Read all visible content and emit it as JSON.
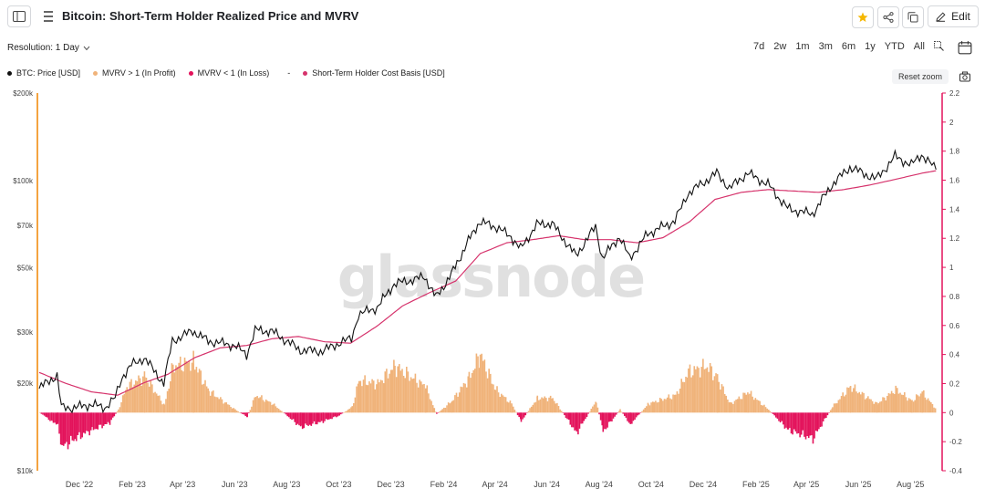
{
  "header": {
    "title": "Bitcoin: Short-Term Holder Realized Price and MVRV",
    "edit_label": "Edit"
  },
  "toolbar": {
    "resolution_label": "Resolution: 1 Day",
    "ranges": [
      "7d",
      "2w",
      "1m",
      "3m",
      "6m",
      "1y",
      "YTD",
      "All"
    ],
    "reset_zoom_label": "Reset zoom"
  },
  "colors": {
    "price": "#111111",
    "profit": "#f0b37a",
    "loss": "#e3125b",
    "cost_basis": "#d6336c",
    "left_axis": "#f4a340",
    "right_axis": "#e3125b",
    "star": "#f5b700"
  },
  "icons": [
    "sidebar-toggle-icon",
    "drag-handle-icon",
    "star-icon",
    "share-icon",
    "copy-icon",
    "edit-icon",
    "chevron-down-icon",
    "zoom-select-icon",
    "calendar-icon",
    "camera-icon"
  ],
  "watermark": "glassnode",
  "chart_data": {
    "type": "line",
    "legend": [
      {
        "name": "BTC: Price [USD]",
        "color": "#111111"
      },
      {
        "name": "MVRV > 1 (In Profit)",
        "color": "#f0b37a"
      },
      {
        "name": "MVRV < 1 (In Loss)",
        "color": "#e3125b"
      },
      {
        "name": "-",
        "color": ""
      },
      {
        "name": "Short-Term Holder Cost Basis [USD]",
        "color": "#d6336c"
      }
    ],
    "x_ticks": [
      "Dec '22",
      "Feb '23",
      "Apr '23",
      "Jun '23",
      "Aug '23",
      "Oct '23",
      "Dec '23",
      "Feb '24",
      "Apr '24",
      "Jun '24",
      "Aug '24",
      "Oct '24",
      "Dec '24",
      "Feb '25",
      "Apr '25",
      "Jun '25",
      "Aug '25"
    ],
    "x_range": [
      "2022-10-15",
      "2025-09-05"
    ],
    "y_left": {
      "scale": "log",
      "ticks": [
        10000,
        20000,
        30000,
        50000,
        70000,
        100000,
        200000
      ],
      "tick_labels": [
        "$10k",
        "$20k",
        "$30k",
        "$50k",
        "$70k",
        "$100k",
        "$200k"
      ],
      "range": [
        10000,
        200000
      ]
    },
    "y_right": {
      "ticks": [
        -0.4,
        -0.2,
        0,
        0.2,
        0.4,
        0.6,
        0.8,
        1,
        1.2,
        1.4,
        1.6,
        1.8,
        2,
        2.2
      ],
      "tick_labels": [
        "-0.4",
        "-0.2",
        "0",
        "0.2",
        "0.4",
        "0.6",
        "0.8",
        "1",
        "1.2",
        "1.4",
        "1.6",
        "1.8",
        "2",
        "2.2"
      ],
      "range": [
        -0.4,
        2.2
      ]
    },
    "series": [
      {
        "name": "BTC: Price [USD]",
        "axis": "left",
        "points": [
          [
            "2022-10-15",
            19200
          ],
          [
            "2022-10-29",
            20700
          ],
          [
            "2022-11-05",
            21200
          ],
          [
            "2022-11-10",
            16500
          ],
          [
            "2022-11-25",
            16500
          ],
          [
            "2022-12-15",
            16900
          ],
          [
            "2022-12-31",
            16500
          ],
          [
            "2023-01-12",
            17800
          ],
          [
            "2023-01-20",
            21000
          ],
          [
            "2023-01-31",
            23100
          ],
          [
            "2023-02-15",
            24500
          ],
          [
            "2023-03-10",
            20000
          ],
          [
            "2023-03-20",
            28000
          ],
          [
            "2023-04-13",
            30300
          ],
          [
            "2023-05-01",
            28000
          ],
          [
            "2023-06-01",
            27000
          ],
          [
            "2023-06-15",
            25100
          ],
          [
            "2023-06-25",
            30500
          ],
          [
            "2023-07-15",
            30200
          ],
          [
            "2023-08-17",
            26000
          ],
          [
            "2023-09-12",
            25800
          ],
          [
            "2023-10-01",
            27500
          ],
          [
            "2023-10-16",
            28500
          ],
          [
            "2023-10-24",
            34500
          ],
          [
            "2023-11-15",
            36500
          ],
          [
            "2023-12-05",
            44000
          ],
          [
            "2024-01-10",
            46500
          ],
          [
            "2024-01-23",
            39500
          ],
          [
            "2024-02-10",
            47500
          ],
          [
            "2024-03-01",
            62000
          ],
          [
            "2024-03-14",
            72000
          ],
          [
            "2024-04-01",
            69500
          ],
          [
            "2024-04-20",
            64000
          ],
          [
            "2024-05-01",
            58000
          ],
          [
            "2024-05-20",
            70500
          ],
          [
            "2024-06-07",
            71000
          ],
          [
            "2024-07-05",
            55000
          ],
          [
            "2024-07-28",
            69500
          ],
          [
            "2024-08-05",
            54000
          ],
          [
            "2024-08-25",
            64000
          ],
          [
            "2024-09-06",
            54000
          ],
          [
            "2024-09-27",
            65500
          ],
          [
            "2024-10-29",
            72500
          ],
          [
            "2024-11-13",
            90000
          ],
          [
            "2024-12-05",
            100000
          ],
          [
            "2024-12-17",
            106000
          ],
          [
            "2025-01-01",
            94000
          ],
          [
            "2025-01-22",
            106000
          ],
          [
            "2025-02-15",
            97000
          ],
          [
            "2025-03-10",
            80000
          ],
          [
            "2025-04-08",
            76500
          ],
          [
            "2025-05-01",
            96500
          ],
          [
            "2025-05-22",
            111000
          ],
          [
            "2025-06-22",
            101000
          ],
          [
            "2025-07-14",
            121000
          ],
          [
            "2025-08-02",
            113000
          ],
          [
            "2025-08-14",
            123000
          ],
          [
            "2025-08-31",
            109000
          ]
        ]
      },
      {
        "name": "Short-Term Holder Cost Basis [USD]",
        "axis": "left",
        "points": [
          [
            "2022-10-15",
            21800
          ],
          [
            "2022-11-15",
            20000
          ],
          [
            "2022-12-15",
            18700
          ],
          [
            "2023-01-15",
            18200
          ],
          [
            "2023-02-15",
            20100
          ],
          [
            "2023-03-15",
            21500
          ],
          [
            "2023-04-15",
            24500
          ],
          [
            "2023-05-15",
            26500
          ],
          [
            "2023-06-15",
            27000
          ],
          [
            "2023-07-15",
            28500
          ],
          [
            "2023-08-15",
            29000
          ],
          [
            "2023-09-15",
            27800
          ],
          [
            "2023-10-15",
            27500
          ],
          [
            "2023-11-15",
            31500
          ],
          [
            "2023-12-15",
            37000
          ],
          [
            "2024-01-15",
            41000
          ],
          [
            "2024-02-15",
            45000
          ],
          [
            "2024-03-15",
            56000
          ],
          [
            "2024-04-15",
            61000
          ],
          [
            "2024-05-15",
            62500
          ],
          [
            "2024-06-15",
            64500
          ],
          [
            "2024-07-15",
            62500
          ],
          [
            "2024-08-15",
            62500
          ],
          [
            "2024-09-15",
            61000
          ],
          [
            "2024-10-15",
            63500
          ],
          [
            "2024-11-15",
            72000
          ],
          [
            "2024-12-15",
            86000
          ],
          [
            "2025-01-15",
            91000
          ],
          [
            "2025-02-15",
            93000
          ],
          [
            "2025-03-15",
            92000
          ],
          [
            "2025-04-15",
            91000
          ],
          [
            "2025-05-15",
            93000
          ],
          [
            "2025-06-15",
            96500
          ],
          [
            "2025-07-15",
            101000
          ],
          [
            "2025-08-15",
            106000
          ],
          [
            "2025-08-31",
            108000
          ]
        ]
      },
      {
        "name": "MVRV",
        "axis": "right",
        "style": "area",
        "points": [
          [
            "2022-10-15",
            0.0
          ],
          [
            "2022-10-29",
            -0.06
          ],
          [
            "2022-11-05",
            -0.08
          ],
          [
            "2022-11-10",
            -0.24
          ],
          [
            "2022-11-25",
            -0.18
          ],
          [
            "2022-12-15",
            -0.12
          ],
          [
            "2023-01-05",
            -0.07
          ],
          [
            "2023-01-15",
            0.02
          ],
          [
            "2023-01-25",
            0.18
          ],
          [
            "2023-02-15",
            0.25
          ],
          [
            "2023-03-10",
            0.05
          ],
          [
            "2023-03-20",
            0.32
          ],
          [
            "2023-04-13",
            0.35
          ],
          [
            "2023-05-01",
            0.15
          ],
          [
            "2023-06-01",
            0.02
          ],
          [
            "2023-06-15",
            -0.03
          ],
          [
            "2023-06-25",
            0.12
          ],
          [
            "2023-07-15",
            0.06
          ],
          [
            "2023-08-17",
            -0.1
          ],
          [
            "2023-09-12",
            -0.06
          ],
          [
            "2023-10-01",
            -0.02
          ],
          [
            "2023-10-16",
            0.04
          ],
          [
            "2023-10-24",
            0.22
          ],
          [
            "2023-11-15",
            0.2
          ],
          [
            "2023-12-05",
            0.32
          ],
          [
            "2024-01-10",
            0.18
          ],
          [
            "2024-01-23",
            -0.01
          ],
          [
            "2024-02-10",
            0.08
          ],
          [
            "2024-03-01",
            0.24
          ],
          [
            "2024-03-14",
            0.4
          ],
          [
            "2024-04-01",
            0.16
          ],
          [
            "2024-04-20",
            0.06
          ],
          [
            "2024-05-01",
            -0.06
          ],
          [
            "2024-05-20",
            0.1
          ],
          [
            "2024-06-07",
            0.1
          ],
          [
            "2024-07-05",
            -0.14
          ],
          [
            "2024-07-28",
            0.08
          ],
          [
            "2024-08-05",
            -0.13
          ],
          [
            "2024-08-25",
            0.02
          ],
          [
            "2024-09-06",
            -0.08
          ],
          [
            "2024-09-27",
            0.06
          ],
          [
            "2024-10-29",
            0.12
          ],
          [
            "2024-11-13",
            0.28
          ],
          [
            "2024-12-05",
            0.32
          ],
          [
            "2024-12-17",
            0.24
          ],
          [
            "2025-01-01",
            0.06
          ],
          [
            "2025-01-22",
            0.14
          ],
          [
            "2025-02-15",
            0.02
          ],
          [
            "2025-03-10",
            -0.12
          ],
          [
            "2025-04-08",
            -0.18
          ],
          [
            "2025-05-01",
            0.04
          ],
          [
            "2025-05-22",
            0.18
          ],
          [
            "2025-06-22",
            0.06
          ],
          [
            "2025-07-14",
            0.16
          ],
          [
            "2025-08-02",
            0.08
          ],
          [
            "2025-08-14",
            0.14
          ],
          [
            "2025-08-31",
            0.02
          ]
        ]
      }
    ]
  }
}
